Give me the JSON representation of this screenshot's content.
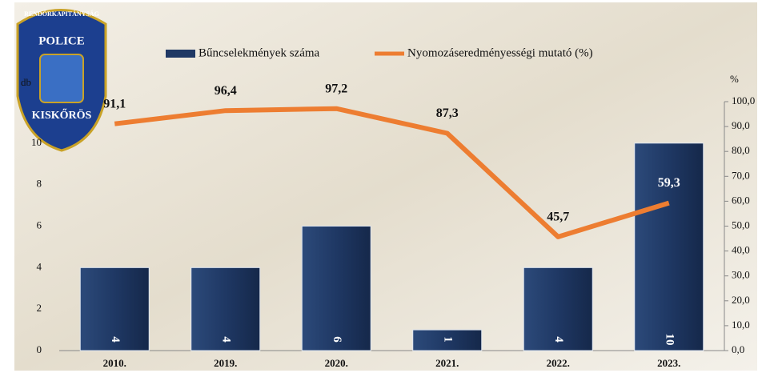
{
  "chart_data": {
    "type": "bar",
    "logo": {
      "top": "RENDŐRKAPITÁNYSÁG",
      "middle": "POLICE",
      "bottom": "KISKŐRÖS"
    },
    "y_label": "db",
    "y2_label": "%",
    "categories": [
      "2010.",
      "2019.",
      "2020.",
      "2021.",
      "2022.",
      "2023."
    ],
    "series": [
      {
        "name": "Bűncselekmények száma",
        "color": "#1f3864",
        "values": [
          4,
          4,
          6,
          1,
          4,
          10
        ]
      },
      {
        "name": "Nyomozáseredményességi mutató (%)",
        "color": "#ed7d31",
        "axis": "y2",
        "type": "line",
        "values": [
          91.1,
          96.4,
          97.2,
          87.3,
          45.7,
          59.3
        ],
        "value_labels": [
          "91,1",
          "96,4",
          "97,2",
          "87,3",
          "45,7",
          "59,3"
        ]
      }
    ],
    "ylim": [
      0,
      12
    ],
    "yticks": [
      0,
      2,
      4,
      6,
      8,
      10
    ],
    "y2lim": [
      0,
      100
    ],
    "y2ticks": [
      {
        "value": 0,
        "label": "0,0"
      },
      {
        "value": 10,
        "label": "10,0"
      },
      {
        "value": 20,
        "label": "20,0"
      },
      {
        "value": 30,
        "label": "30,0"
      },
      {
        "value": 40,
        "label": "40,0"
      },
      {
        "value": 50,
        "label": "50,0"
      },
      {
        "value": 60,
        "label": "60,0"
      },
      {
        "value": 70,
        "label": "70,0"
      },
      {
        "value": 80,
        "label": "80,0"
      },
      {
        "value": 90,
        "label": "90,0"
      },
      {
        "value": 100,
        "label": "100,0"
      }
    ],
    "legend": "top"
  }
}
